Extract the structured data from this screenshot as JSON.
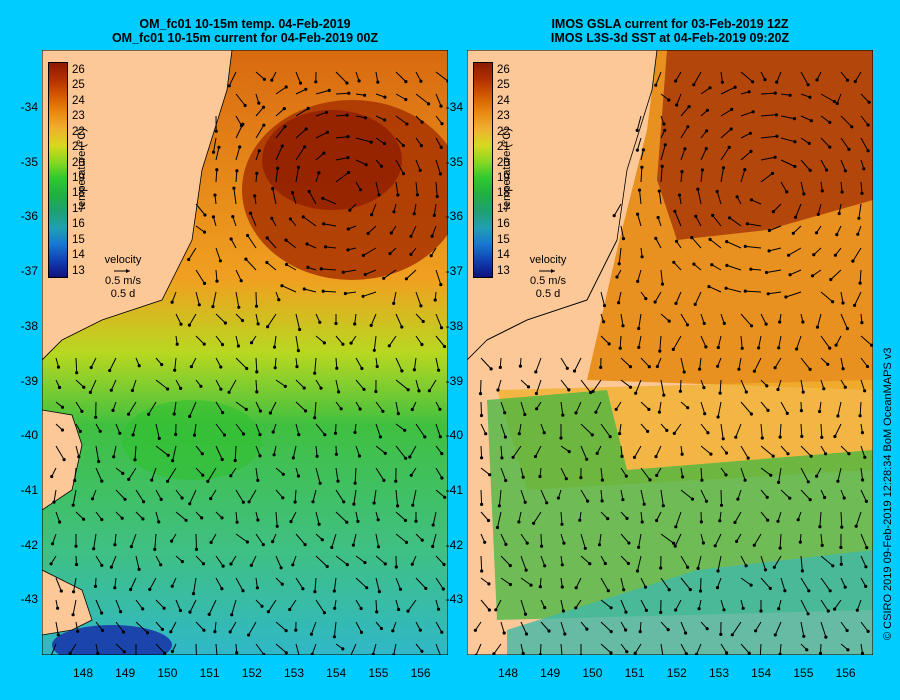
{
  "left_panel": {
    "title_line1": "OM_fc01 10-15m temp. 04-Feb-2019",
    "title_line2": "OM_fc01 10-15m current for 04-Feb-2019 00Z"
  },
  "right_panel": {
    "title_line1": "IMOS GSLA current for 03-Feb-2019 12Z",
    "title_line2": "IMOS L3S-3d SST at 04-Feb-2019 09:20Z"
  },
  "colorbar": {
    "label": "temperature (°C)",
    "ticks": [
      "26",
      "25",
      "24",
      "23",
      "22",
      "21",
      "20",
      "19",
      "18",
      "17",
      "16",
      "15",
      "14",
      "13"
    ],
    "colors": [
      "#8b1a00",
      "#b23000",
      "#d45a00",
      "#e88a10",
      "#f0b030",
      "#d8d820",
      "#8ad820",
      "#30c830",
      "#20b040",
      "#20a070",
      "#20a0b0",
      "#1878d0",
      "#1040b0",
      "#101080"
    ]
  },
  "velocity_legend": {
    "title": "velocity",
    "speed": "0.5 m/s",
    "time": "0.5 d"
  },
  "axes": {
    "lat_labels": [
      "-34",
      "-35",
      "-36",
      "-37",
      "-38",
      "-39",
      "-40",
      "-41",
      "-42",
      "-43"
    ],
    "lon_labels": [
      "148",
      "149",
      "150",
      "151",
      "152",
      "153",
      "154",
      "155",
      "156"
    ]
  },
  "credit": "© CSIRO 2019   09-Feb-2019 12:28:34 BoM OceanMAPS v3",
  "colors": {
    "background": "#00ccff",
    "land": "#fcc898"
  }
}
